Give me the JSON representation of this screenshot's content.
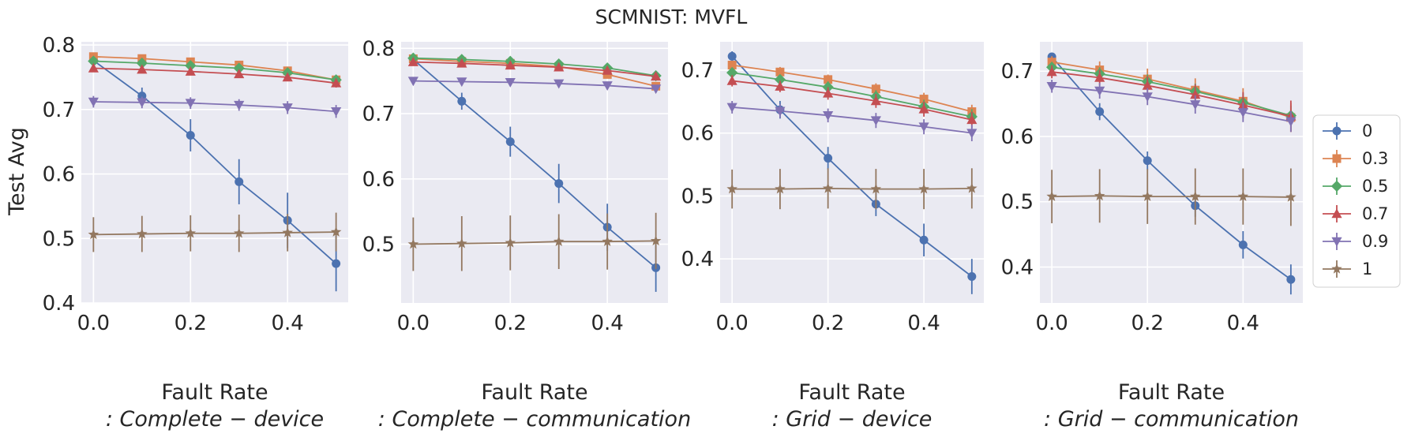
{
  "figure_title": "SCMNIST: MVFL",
  "ylabel": "Test Avg",
  "chart_data": [
    {
      "type": "line",
      "xlabel": "Fault Rate",
      "subtitle": ": Complete − device",
      "x": [
        0.0,
        0.1,
        0.2,
        0.3,
        0.4,
        0.5
      ],
      "xticks": [
        "0.0",
        "0.2",
        "0.4"
      ],
      "ylim": [
        0.4,
        0.805
      ],
      "yticks": [
        "0.4",
        "0.5",
        "0.6",
        "0.7",
        "0.8"
      ],
      "series": [
        {
          "name": "0",
          "values": [
            0.776,
            0.721,
            0.66,
            0.588,
            0.528,
            0.461
          ],
          "err": [
            0.006,
            0.013,
            0.025,
            0.035,
            0.043,
            0.043
          ]
        },
        {
          "name": "0.3",
          "values": [
            0.782,
            0.779,
            0.774,
            0.769,
            0.76,
            0.746
          ],
          "err": [
            0.004,
            0.004,
            0.004,
            0.005,
            0.005,
            0.006
          ]
        },
        {
          "name": "0.5",
          "values": [
            0.775,
            0.772,
            0.768,
            0.764,
            0.757,
            0.746
          ],
          "err": [
            0.005,
            0.005,
            0.005,
            0.006,
            0.006,
            0.007
          ]
        },
        {
          "name": "0.7",
          "values": [
            0.764,
            0.762,
            0.759,
            0.755,
            0.75,
            0.741
          ],
          "err": [
            0.005,
            0.005,
            0.005,
            0.006,
            0.006,
            0.007
          ]
        },
        {
          "name": "0.9",
          "values": [
            0.712,
            0.711,
            0.71,
            0.707,
            0.703,
            0.697
          ],
          "err": [
            0.009,
            0.009,
            0.009,
            0.009,
            0.01,
            0.01
          ]
        },
        {
          "name": "1",
          "values": [
            0.506,
            0.507,
            0.508,
            0.508,
            0.509,
            0.51
          ],
          "err": [
            0.027,
            0.028,
            0.028,
            0.029,
            0.029,
            0.03
          ]
        }
      ]
    },
    {
      "type": "line",
      "xlabel": "Fault Rate",
      "subtitle": ": Complete − communication",
      "x": [
        0.0,
        0.1,
        0.2,
        0.3,
        0.4,
        0.5
      ],
      "xticks": [
        "0.0",
        "0.2",
        "0.4"
      ],
      "ylim": [
        0.41,
        0.81
      ],
      "yticks": [
        "0.5",
        "0.6",
        "0.7",
        "0.8"
      ],
      "series": [
        {
          "name": "0",
          "values": [
            0.783,
            0.719,
            0.657,
            0.593,
            0.526,
            0.464
          ],
          "err": [
            0.005,
            0.013,
            0.023,
            0.03,
            0.036,
            0.037
          ]
        },
        {
          "name": "0.3",
          "values": [
            0.784,
            0.78,
            0.777,
            0.772,
            0.76,
            0.742
          ],
          "err": [
            0.003,
            0.003,
            0.004,
            0.004,
            0.005,
            0.006
          ]
        },
        {
          "name": "0.5",
          "values": [
            0.785,
            0.783,
            0.78,
            0.776,
            0.77,
            0.758
          ],
          "err": [
            0.003,
            0.003,
            0.003,
            0.004,
            0.004,
            0.005
          ]
        },
        {
          "name": "0.7",
          "values": [
            0.779,
            0.777,
            0.774,
            0.771,
            0.766,
            0.757
          ],
          "err": [
            0.003,
            0.003,
            0.004,
            0.004,
            0.005,
            0.005
          ]
        },
        {
          "name": "0.9",
          "values": [
            0.75,
            0.749,
            0.748,
            0.746,
            0.743,
            0.738
          ],
          "err": [
            0.005,
            0.005,
            0.005,
            0.005,
            0.006,
            0.006
          ]
        },
        {
          "name": "1",
          "values": [
            0.5,
            0.501,
            0.502,
            0.504,
            0.504,
            0.505
          ],
          "err": [
            0.041,
            0.042,
            0.042,
            0.042,
            0.043,
            0.043
          ]
        }
      ]
    },
    {
      "type": "line",
      "xlabel": "Fault Rate",
      "subtitle": ": Grid − device",
      "x": [
        0.0,
        0.1,
        0.2,
        0.3,
        0.4,
        0.5
      ],
      "xticks": [
        "0.0",
        "0.2",
        "0.4"
      ],
      "ylim": [
        0.33,
        0.745
      ],
      "yticks": [
        "0.4",
        "0.5",
        "0.6",
        "0.7"
      ],
      "series": [
        {
          "name": "0",
          "values": [
            0.722,
            0.637,
            0.56,
            0.487,
            0.43,
            0.372
          ],
          "err": [
            0.008,
            0.014,
            0.018,
            0.019,
            0.026,
            0.028
          ]
        },
        {
          "name": "0.3",
          "values": [
            0.708,
            0.697,
            0.685,
            0.67,
            0.654,
            0.634
          ],
          "err": [
            0.007,
            0.008,
            0.008,
            0.009,
            0.01,
            0.011
          ]
        },
        {
          "name": "0.5",
          "values": [
            0.696,
            0.685,
            0.673,
            0.658,
            0.642,
            0.626
          ],
          "err": [
            0.008,
            0.008,
            0.009,
            0.01,
            0.011,
            0.012
          ]
        },
        {
          "name": "0.7",
          "values": [
            0.683,
            0.674,
            0.663,
            0.651,
            0.638,
            0.621
          ],
          "err": [
            0.009,
            0.009,
            0.01,
            0.011,
            0.012,
            0.013
          ]
        },
        {
          "name": "0.9",
          "values": [
            0.641,
            0.635,
            0.628,
            0.62,
            0.61,
            0.6
          ],
          "err": [
            0.01,
            0.011,
            0.011,
            0.012,
            0.012,
            0.013
          ]
        },
        {
          "name": "1",
          "values": [
            0.511,
            0.511,
            0.512,
            0.511,
            0.511,
            0.512
          ],
          "err": [
            0.031,
            0.032,
            0.032,
            0.032,
            0.032,
            0.032
          ]
        }
      ]
    },
    {
      "type": "line",
      "xlabel": "Fault Rate",
      "subtitle": ": Grid − communication",
      "x": [
        0.0,
        0.1,
        0.2,
        0.3,
        0.4,
        0.5
      ],
      "xticks": [
        "0.0",
        "0.2",
        "0.4"
      ],
      "ylim": [
        0.345,
        0.745
      ],
      "yticks": [
        "0.4",
        "0.5",
        "0.6",
        "0.7"
      ],
      "series": [
        {
          "name": "0",
          "values": [
            0.722,
            0.638,
            0.563,
            0.494,
            0.434,
            0.381
          ],
          "err": [
            0.006,
            0.013,
            0.014,
            0.017,
            0.021,
            0.023
          ]
        },
        {
          "name": "0.3",
          "values": [
            0.714,
            0.702,
            0.688,
            0.671,
            0.654,
            0.629
          ],
          "err": [
            0.009,
            0.013,
            0.016,
            0.018,
            0.02,
            0.022
          ]
        },
        {
          "name": "0.5",
          "values": [
            0.706,
            0.696,
            0.684,
            0.669,
            0.652,
            0.632
          ],
          "err": [
            0.008,
            0.01,
            0.011,
            0.012,
            0.014,
            0.015
          ]
        },
        {
          "name": "0.7",
          "values": [
            0.699,
            0.69,
            0.678,
            0.664,
            0.648,
            0.631
          ],
          "err": [
            0.01,
            0.012,
            0.014,
            0.016,
            0.02,
            0.024
          ]
        },
        {
          "name": "0.9",
          "values": [
            0.677,
            0.67,
            0.661,
            0.649,
            0.637,
            0.623
          ],
          "err": [
            0.01,
            0.012,
            0.013,
            0.014,
            0.015,
            0.016
          ]
        },
        {
          "name": "1",
          "values": [
            0.508,
            0.509,
            0.508,
            0.508,
            0.508,
            0.507
          ],
          "err": [
            0.041,
            0.041,
            0.042,
            0.043,
            0.043,
            0.044
          ]
        }
      ]
    }
  ],
  "legend": {
    "placement": "right",
    "entries": [
      "0",
      "0.3",
      "0.5",
      "0.7",
      "0.9",
      "1"
    ]
  },
  "styles": {
    "colors": [
      "#4c72b0",
      "#dd8452",
      "#55a868",
      "#c44e52",
      "#8172b3",
      "#937860"
    ],
    "markers": [
      "circle",
      "square",
      "diamond",
      "triangle-up",
      "triangle-down",
      "star"
    ],
    "panel_bg": "#eaeaf2"
  }
}
